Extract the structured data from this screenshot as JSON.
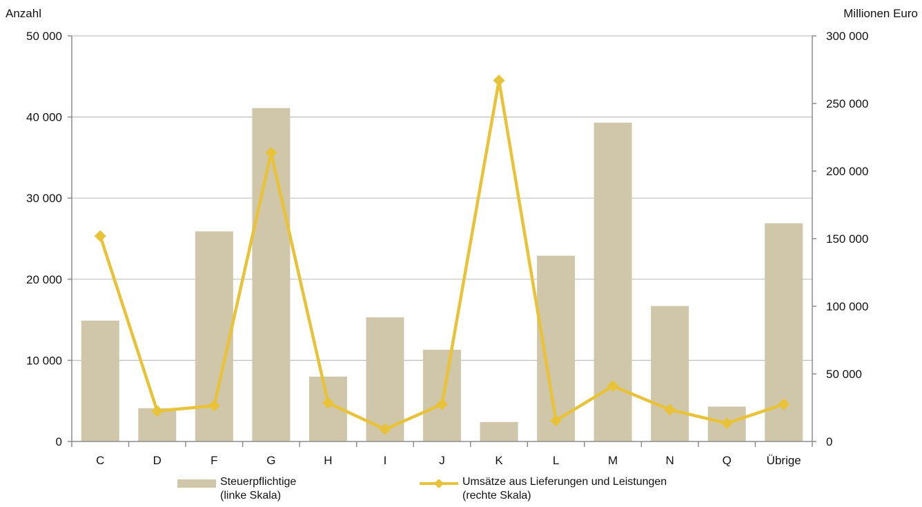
{
  "chart_data": {
    "type": "bar",
    "left_axis_unit": "Anzahl",
    "right_axis_unit": "Millionen Euro",
    "categories": [
      "C",
      "D",
      "F",
      "G",
      "H",
      "I",
      "J",
      "K",
      "L",
      "M",
      "N",
      "Q",
      "Übrige"
    ],
    "series": [
      {
        "name": "Steuerpflichtige",
        "name_line2": "(linke Skala)",
        "type": "bar",
        "axis": "left",
        "color": "#d0c6a9",
        "values": [
          14900,
          4100,
          25900,
          41100,
          8000,
          15300,
          11300,
          2400,
          22900,
          39300,
          16700,
          4300,
          26900
        ]
      },
      {
        "name": "Umsätze aus Lieferungen und Leistungen",
        "name_line2": "(rechte Skala)",
        "type": "line",
        "axis": "right",
        "color": "#e8c33a",
        "values": [
          152000,
          22500,
          26500,
          213500,
          28500,
          9000,
          27500,
          267000,
          15500,
          41000,
          23500,
          13500,
          27500
        ]
      }
    ],
    "left_axis": {
      "min": 0,
      "max": 50000,
      "ticks": [
        "0",
        "10 000",
        "20 000",
        "30 000",
        "40 000",
        "50 000"
      ]
    },
    "right_axis": {
      "min": 0,
      "max": 300000,
      "ticks": [
        "0",
        "50 000",
        "100 000",
        "150 000",
        "200 000",
        "250 000",
        "300 000"
      ]
    },
    "grid": true,
    "legend_position": "bottom"
  }
}
